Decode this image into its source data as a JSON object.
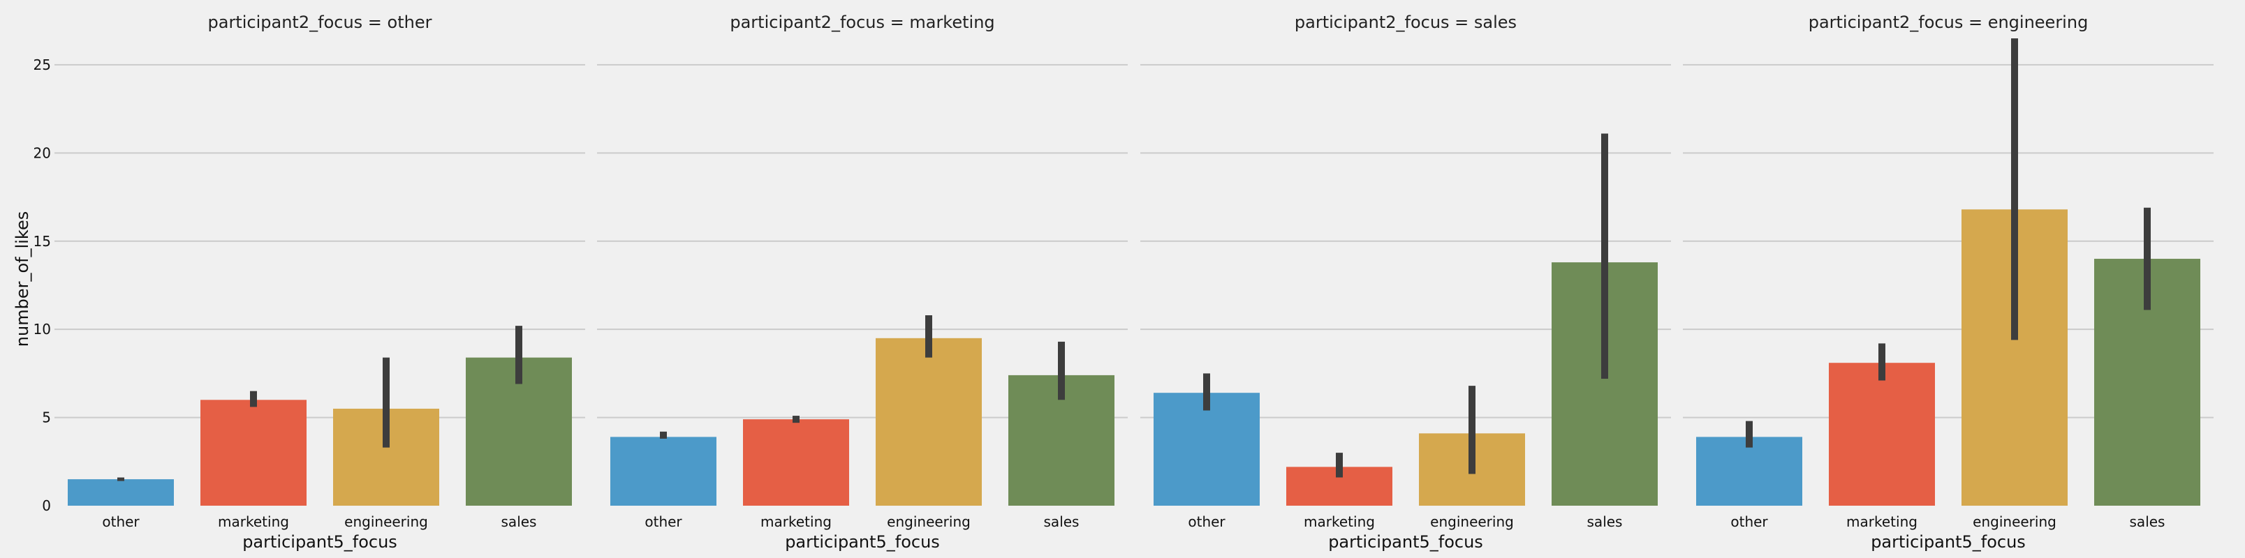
{
  "chart_data": {
    "type": "bar",
    "facet_label": "participant2_focus",
    "facets": [
      "other",
      "marketing",
      "sales",
      "engineering"
    ],
    "panel_titles": [
      "participant2_focus = other",
      "participant2_focus = marketing",
      "participant2_focus = sales",
      "participant2_focus = engineering"
    ],
    "categories": [
      "other",
      "marketing",
      "engineering",
      "sales"
    ],
    "xlabel": "participant5_focus",
    "ylabel": "number_of_likes",
    "ylim": [
      0,
      26.5
    ],
    "yticks": [
      0,
      5,
      10,
      15,
      20,
      25
    ],
    "grid": true,
    "colors": {
      "other": "#4c9ac9",
      "marketing": "#e55f45",
      "engineering": "#d5a84e",
      "sales": "#6f8c57"
    },
    "panels": [
      {
        "facet": "other",
        "values": [
          1.5,
          6.0,
          5.5,
          8.4
        ],
        "ci": [
          [
            1.4,
            1.6
          ],
          [
            5.6,
            6.5
          ],
          [
            3.3,
            8.4
          ],
          [
            6.9,
            10.2
          ]
        ]
      },
      {
        "facet": "marketing",
        "values": [
          3.9,
          4.9,
          9.5,
          7.4
        ],
        "ci": [
          [
            3.8,
            4.2
          ],
          [
            4.7,
            5.1
          ],
          [
            8.4,
            10.8
          ],
          [
            6.0,
            9.3
          ]
        ]
      },
      {
        "facet": "sales",
        "values": [
          6.4,
          2.2,
          4.1,
          13.8
        ],
        "ci": [
          [
            5.4,
            7.5
          ],
          [
            1.6,
            3.0
          ],
          [
            1.8,
            6.8
          ],
          [
            7.2,
            21.1
          ]
        ]
      },
      {
        "facet": "engineering",
        "values": [
          3.9,
          8.1,
          16.8,
          14.0
        ],
        "ci": [
          [
            3.3,
            4.8
          ],
          [
            7.1,
            9.2
          ],
          [
            9.4,
            26.5
          ],
          [
            11.1,
            16.9
          ]
        ]
      }
    ]
  }
}
